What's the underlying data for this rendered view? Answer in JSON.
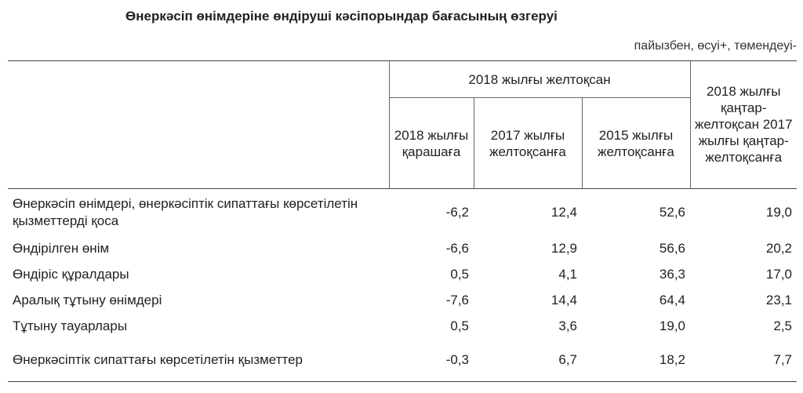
{
  "title": "Өнеркәсіп өнімдеріне өндіруші кәсіпорындар бағасының өзгеруі",
  "unit_note": "пайызбен, өсуі+, төмендеуі-",
  "header": {
    "group": "2018 жылғы желтоқсан",
    "sub_columns": [
      "2018 жылғы қарашаға",
      "2017 жылғы желтоқсанға",
      "2015 жылғы желтоқсанға"
    ],
    "annual": "2018 жылғы қаңтар-желтоқсан 2017 жылғы қаңтар-желтоқсанға"
  },
  "rows": [
    {
      "label": "Өнеркәсіп өнімдері, өнеркәсіптік сипаттағы көрсетілетін қызметтерді қоса",
      "values": [
        "-6,2",
        "12,4",
        "52,6",
        "19,0"
      ]
    },
    {
      "label": "Өндірілген өнім",
      "values": [
        "-6,6",
        "12,9",
        "56,6",
        "20,2"
      ]
    },
    {
      "label": "Өндіріс құралдары",
      "values": [
        "0,5",
        "4,1",
        "36,3",
        "17,0"
      ]
    },
    {
      "label": "Аралық тұтыну өнімдері",
      "values": [
        "-7,6",
        "14,4",
        "64,4",
        "23,1"
      ]
    },
    {
      "label": "Тұтыну тауарлары",
      "values": [
        "0,5",
        "3,6",
        "19,0",
        "2,5"
      ]
    },
    {
      "label": "Өнеркәсіптік сипаттағы көрсетілетін қызметтер",
      "values": [
        "-0,3",
        "6,7",
        "18,2",
        "7,7"
      ]
    }
  ]
}
